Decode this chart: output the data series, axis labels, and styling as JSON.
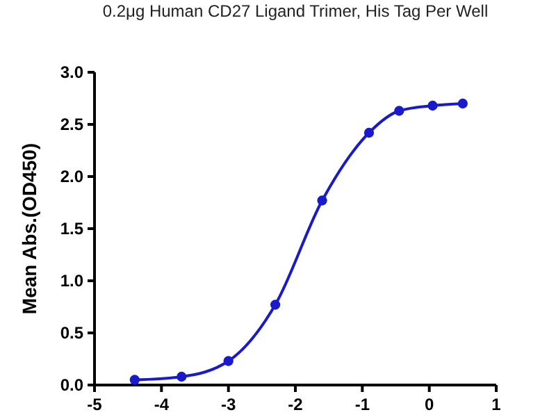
{
  "chart_data": {
    "type": "line",
    "title": "0.2μg Human CD27 Ligand Trimer, His Tag Per Well",
    "ylabel": "Mean Abs.(OD450)",
    "x": [
      -4.4,
      -3.7,
      -3.0,
      -2.3,
      -1.6,
      -0.9,
      -0.45,
      0.05,
      0.5
    ],
    "series": [
      {
        "color": "#1a1acd",
        "values": [
          0.05,
          0.08,
          0.23,
          0.77,
          1.77,
          2.42,
          2.63,
          2.68,
          2.7
        ]
      }
    ],
    "xlim": [
      -5,
      1
    ],
    "xticks": [
      -5,
      -4,
      -3,
      -2,
      -1,
      0,
      1
    ],
    "ylim": [
      0,
      3
    ],
    "yticks": [
      {
        "value": 0,
        "label": "0.0"
      },
      {
        "value": 0.5,
        "label": "0.5"
      },
      {
        "value": 1,
        "label": "1.0"
      },
      {
        "value": 1.5,
        "label": "1.5"
      },
      {
        "value": 2,
        "label": "2.0"
      },
      {
        "value": 2.5,
        "label": "2.5"
      },
      {
        "value": 3,
        "label": "3.0"
      }
    ],
    "grid": false,
    "marker": "circle",
    "line_style": "solid"
  }
}
